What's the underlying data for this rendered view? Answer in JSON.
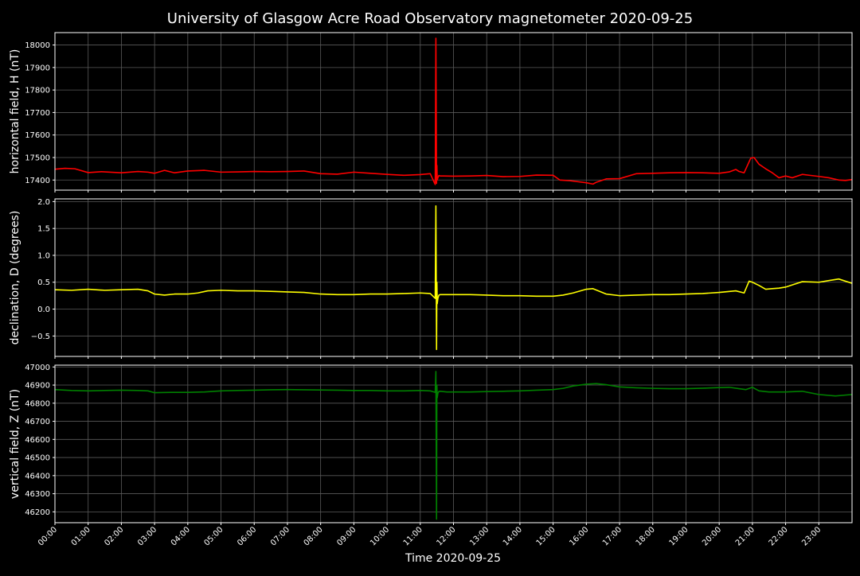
{
  "title": "University of Glasgow Acre Road Observatory magnetometer 2020-09-25",
  "xlabel": "Time 2020-09-25",
  "colors": {
    "background": "#000000",
    "grid": "#5a5a5a",
    "axes": "#ffffff"
  },
  "chart_data": [
    {
      "type": "line",
      "ylabel": "horizontal field, H (nT)",
      "ylim": [
        17355,
        18055
      ],
      "yticks": [
        17400,
        17500,
        17600,
        17700,
        17800,
        17900,
        18000
      ],
      "xlim": [
        0,
        24
      ],
      "grid": true,
      "series": [
        {
          "color": "#ff0000",
          "x": [
            0,
            0.3,
            0.6,
            1,
            1.4,
            2,
            2.5,
            2.8,
            3,
            3.3,
            3.6,
            4,
            4.5,
            5,
            5.5,
            6,
            6.5,
            7,
            7.5,
            8,
            8.5,
            9,
            9.5,
            10,
            10.5,
            11,
            11.3,
            11.45,
            11.47,
            11.49,
            11.5,
            11.51,
            11.53,
            11.56,
            11.6,
            11.7,
            12,
            12.5,
            13,
            13.5,
            14,
            14.5,
            15,
            15.2,
            15.5,
            16,
            16.2,
            16.3,
            16.6,
            17,
            17.5,
            18,
            18.5,
            19,
            19.5,
            20,
            20.3,
            20.5,
            20.6,
            20.75,
            20.95,
            21.05,
            21.2,
            21.4,
            21.6,
            21.8,
            22,
            22.2,
            22.5,
            23,
            23.3,
            23.6,
            23.8,
            24
          ],
          "values": [
            17448,
            17452,
            17450,
            17433,
            17437,
            17432,
            17438,
            17435,
            17430,
            17443,
            17432,
            17440,
            17443,
            17435,
            17436,
            17438,
            17437,
            17438,
            17440,
            17428,
            17426,
            17435,
            17430,
            17425,
            17421,
            17424,
            17428,
            17380,
            18030,
            17385,
            17465,
            17400,
            17410,
            17420,
            17418,
            17418,
            17417,
            17418,
            17420,
            17415,
            17416,
            17422,
            17421,
            17400,
            17397,
            17388,
            17382,
            17390,
            17405,
            17406,
            17428,
            17430,
            17432,
            17433,
            17432,
            17430,
            17436,
            17447,
            17438,
            17432,
            17497,
            17500,
            17470,
            17450,
            17432,
            17410,
            17418,
            17410,
            17425,
            17416,
            17410,
            17400,
            17398,
            17402
          ]
        }
      ]
    },
    {
      "type": "line",
      "ylabel": "declination, D (degrees)",
      "ylim": [
        -0.88,
        2.05
      ],
      "yticks": [
        -0.5,
        0.0,
        0.5,
        1.0,
        1.5,
        2.0
      ],
      "yticklabels": [
        "−0.5",
        "0.0",
        "0.5",
        "1.0",
        "1.5",
        "2.0"
      ],
      "xlim": [
        0,
        24
      ],
      "grid": true,
      "series": [
        {
          "color": "#ffff00",
          "x": [
            0,
            0.5,
            1,
            1.5,
            2,
            2.5,
            2.8,
            3,
            3.3,
            3.6,
            4,
            4.3,
            4.6,
            5,
            5.5,
            6,
            6.5,
            7,
            7.5,
            8,
            8.5,
            9,
            9.5,
            10,
            10.5,
            11,
            11.3,
            11.45,
            11.47,
            11.49,
            11.5,
            11.51,
            11.53,
            11.56,
            11.6,
            11.7,
            12,
            12.5,
            13,
            13.5,
            14,
            14.5,
            15,
            15.3,
            15.6,
            16,
            16.2,
            16.4,
            16.6,
            17,
            17.5,
            18,
            18.5,
            19,
            19.5,
            20,
            20.5,
            20.75,
            20.9,
            21,
            21.2,
            21.4,
            21.6,
            21.8,
            22,
            22.2,
            22.5,
            23,
            23.3,
            23.6,
            24
          ],
          "values": [
            0.36,
            0.35,
            0.37,
            0.35,
            0.36,
            0.37,
            0.34,
            0.28,
            0.26,
            0.28,
            0.28,
            0.3,
            0.34,
            0.35,
            0.34,
            0.34,
            0.33,
            0.32,
            0.31,
            0.28,
            0.27,
            0.27,
            0.28,
            0.28,
            0.29,
            0.3,
            0.29,
            0.2,
            1.92,
            -0.75,
            0.5,
            0.1,
            0.2,
            0.26,
            0.27,
            0.27,
            0.27,
            0.27,
            0.26,
            0.25,
            0.25,
            0.24,
            0.24,
            0.26,
            0.3,
            0.37,
            0.38,
            0.33,
            0.28,
            0.25,
            0.26,
            0.27,
            0.27,
            0.28,
            0.29,
            0.31,
            0.34,
            0.3,
            0.52,
            0.5,
            0.44,
            0.37,
            0.38,
            0.39,
            0.41,
            0.45,
            0.51,
            0.5,
            0.53,
            0.56,
            0.48
          ]
        }
      ]
    },
    {
      "type": "line",
      "ylabel": "vertical field, Z (nT)",
      "ylim": [
        46140,
        47010
      ],
      "yticks": [
        46200,
        46300,
        46400,
        46500,
        46600,
        46700,
        46800,
        46900,
        47000
      ],
      "xlim": [
        0,
        24
      ],
      "grid": true,
      "series": [
        {
          "color": "#008000",
          "x": [
            0,
            0.5,
            1,
            1.5,
            2,
            2.5,
            2.8,
            3,
            3.5,
            4,
            4.5,
            5,
            5.5,
            6,
            6.5,
            7,
            7.5,
            8,
            8.5,
            9,
            9.5,
            10,
            10.5,
            11,
            11.3,
            11.45,
            11.47,
            11.49,
            11.5,
            11.51,
            11.53,
            11.56,
            11.6,
            11.8,
            12,
            12.5,
            13,
            13.5,
            14,
            14.5,
            15,
            15.3,
            15.6,
            16,
            16.3,
            16.6,
            17,
            17.5,
            18,
            18.5,
            19,
            19.5,
            20,
            20.3,
            20.6,
            20.8,
            21,
            21.2,
            21.5,
            22,
            22.5,
            23,
            23.5,
            24
          ],
          "values": [
            46875,
            46870,
            46868,
            46870,
            46872,
            46870,
            46868,
            46858,
            46860,
            46860,
            46862,
            46868,
            46870,
            46872,
            46874,
            46875,
            46874,
            46873,
            46872,
            46870,
            46870,
            46868,
            46868,
            46870,
            46868,
            46860,
            46975,
            46160,
            46900,
            46830,
            46855,
            46865,
            46866,
            46862,
            46862,
            46862,
            46864,
            46866,
            46868,
            46872,
            46875,
            46882,
            46895,
            46905,
            46908,
            46902,
            46890,
            46885,
            46882,
            46880,
            46880,
            46883,
            46886,
            46888,
            46880,
            46875,
            46888,
            46868,
            46862,
            46862,
            46866,
            46848,
            46840,
            46848
          ]
        }
      ]
    }
  ],
  "xaxis": {
    "ticks": [
      0,
      1,
      2,
      3,
      4,
      5,
      6,
      7,
      8,
      9,
      10,
      11,
      12,
      13,
      14,
      15,
      16,
      17,
      18,
      19,
      20,
      21,
      22,
      23
    ],
    "ticklabels": [
      "00:00",
      "01:00",
      "02:00",
      "03:00",
      "04:00",
      "05:00",
      "06:00",
      "07:00",
      "08:00",
      "09:00",
      "10:00",
      "11:00",
      "12:00",
      "13:00",
      "14:00",
      "15:00",
      "16:00",
      "17:00",
      "18:00",
      "19:00",
      "20:00",
      "21:00",
      "22:00",
      "23:00"
    ]
  }
}
